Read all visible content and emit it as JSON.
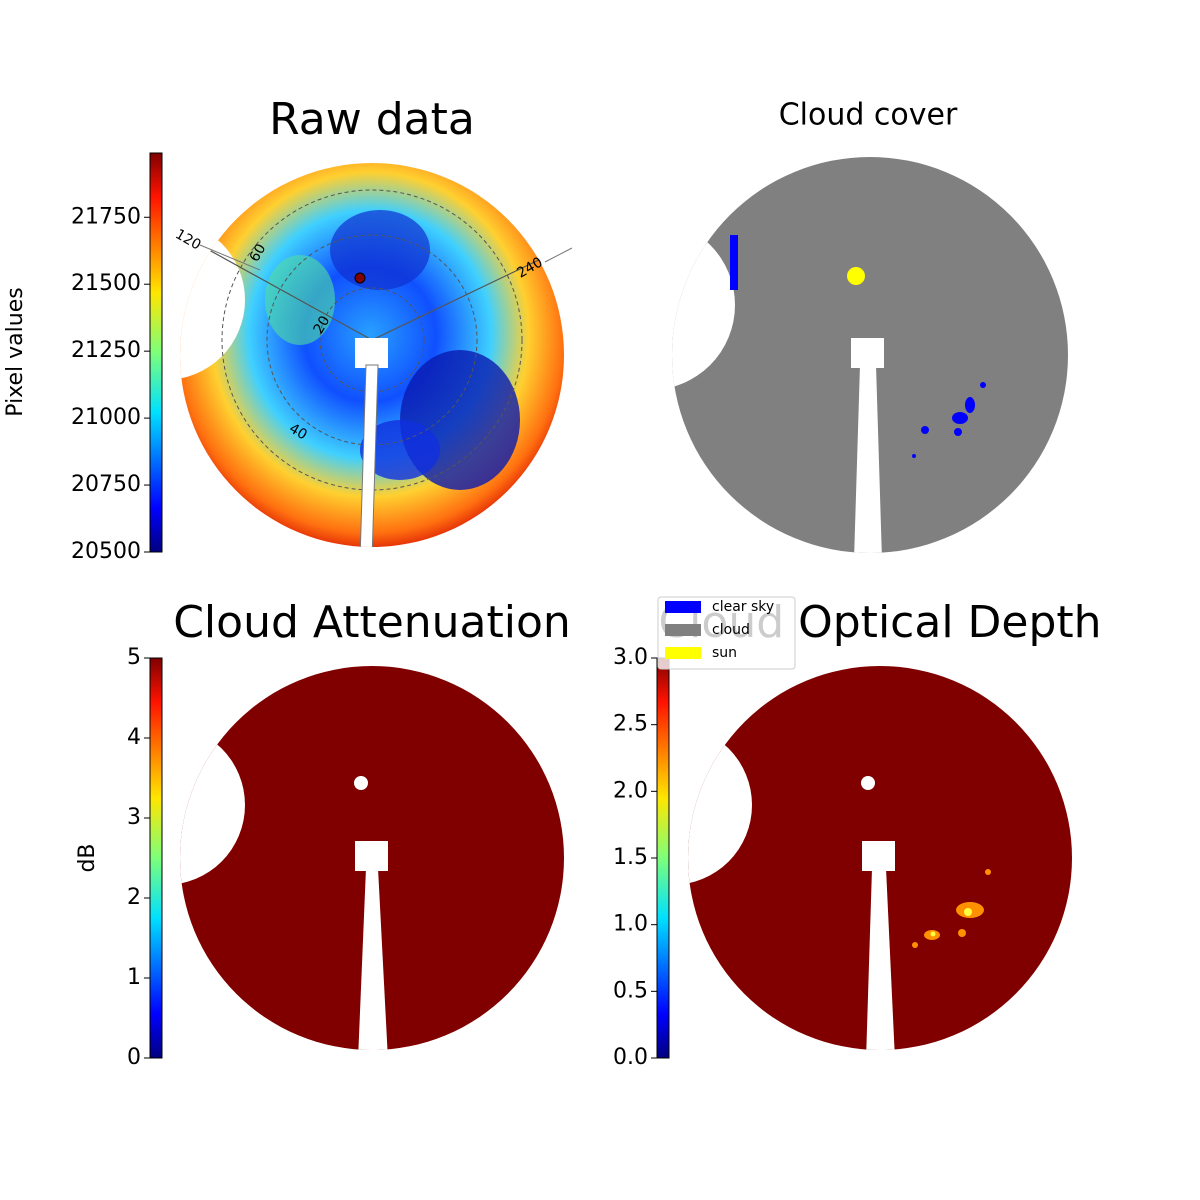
{
  "chart_data": [
    {
      "type": "heatmap",
      "title": "Raw data",
      "colorbar_label": "Pixel values",
      "ylim": [
        20500,
        21990
      ],
      "yticks": [
        20500,
        20750,
        21000,
        21250,
        21500,
        21750
      ],
      "annotations": [
        "120",
        "60",
        "20",
        "40",
        "240"
      ]
    },
    {
      "type": "mask",
      "title": "Cloud cover",
      "series": [
        {
          "name": "clear sky",
          "color": "#0000ff"
        },
        {
          "name": "cloud",
          "color": "#808080"
        },
        {
          "name": "sun",
          "color": "#ffff00"
        }
      ]
    },
    {
      "type": "heatmap",
      "title": "Cloud Attenuation",
      "colorbar_label": "dB",
      "ylim": [
        0,
        5
      ],
      "yticks": [
        0,
        1,
        2,
        3,
        4,
        5
      ]
    },
    {
      "type": "heatmap",
      "title": "Cloud Optical Depth",
      "ylim": [
        0,
        3
      ],
      "yticks": [
        {
          "value": 0,
          "label": "0.0"
        },
        {
          "value": 0.5,
          "label": "0.5"
        },
        {
          "value": 1,
          "label": "1.0"
        },
        {
          "value": 1.5,
          "label": "1.5"
        },
        {
          "value": 2,
          "label": "2.0"
        },
        {
          "value": 2.5,
          "label": "2.5"
        },
        {
          "value": 3,
          "label": "3.0"
        }
      ]
    }
  ]
}
